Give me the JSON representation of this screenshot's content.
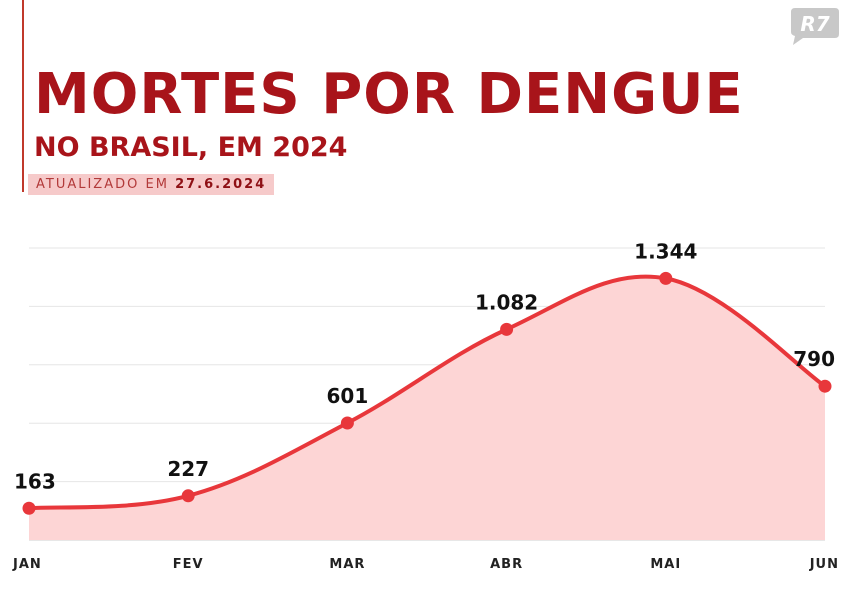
{
  "header": {
    "title": "MORTES POR DENGUE",
    "subtitle": "NO BRASIL, EM 2024",
    "updated_prefix": "ATUALIZADO EM",
    "updated_date": "27.6.2024"
  },
  "brand": {
    "logo_text": "R7"
  },
  "colors": {
    "accent": "#a8141a",
    "line": "#e8373b",
    "area": "#fdd5d5"
  },
  "chart_data": {
    "type": "area",
    "categories": [
      "JAN",
      "FEV",
      "MAR",
      "ABR",
      "MAI",
      "JUN"
    ],
    "values": [
      163,
      227,
      601,
      1082,
      1344,
      790
    ],
    "value_labels": [
      "163",
      "227",
      "601",
      "1.082",
      "1.344",
      "790"
    ],
    "ylim": [
      0,
      1500
    ],
    "grid": true
  }
}
